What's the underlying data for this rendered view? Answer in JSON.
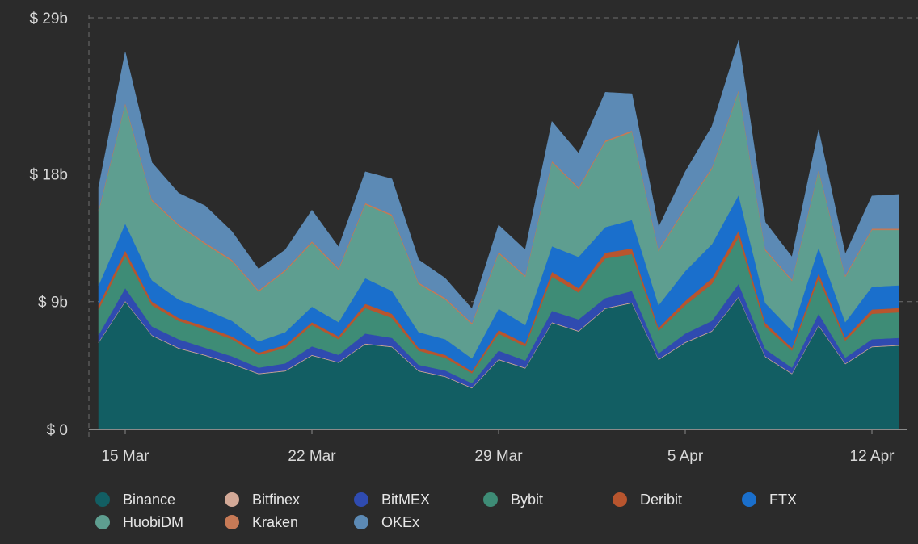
{
  "chart_data": {
    "type": "area",
    "stacked": true,
    "x_tick_labels": [
      "15 Mar",
      "22 Mar",
      "29 Mar",
      "5 Apr",
      "12 Apr"
    ],
    "y_tick_labels": [
      "$ 0",
      "$ 9b",
      "$ 18b",
      "$ 29b"
    ],
    "y_ticks": [
      0,
      9,
      18,
      29
    ],
    "ylim": [
      0,
      29
    ],
    "y_unit": "billion USD",
    "x": [
      "14 Mar",
      "15 Mar",
      "16 Mar",
      "17 Mar",
      "18 Mar",
      "19 Mar",
      "20 Mar",
      "21 Mar",
      "22 Mar",
      "23 Mar",
      "24 Mar",
      "25 Mar",
      "26 Mar",
      "27 Mar",
      "28 Mar",
      "29 Mar",
      "30 Mar",
      "31 Mar",
      "1 Apr",
      "2 Apr",
      "3 Apr",
      "4 Apr",
      "5 Apr",
      "6 Apr",
      "7 Apr",
      "8 Apr",
      "9 Apr",
      "10 Apr",
      "11 Apr",
      "12 Apr",
      "13 Apr"
    ],
    "grid": "horizontal dashed",
    "legend_position": "bottom",
    "series": [
      {
        "name": "Binance",
        "color": "#125e63",
        "values": [
          6.1,
          9.0,
          6.6,
          5.7,
          5.2,
          4.6,
          3.9,
          4.1,
          5.2,
          4.7,
          6.0,
          5.8,
          4.1,
          3.7,
          2.9,
          4.9,
          4.3,
          7.5,
          6.9,
          8.5,
          8.9,
          4.9,
          6.1,
          6.9,
          9.3,
          5.1,
          3.9,
          7.3,
          4.6,
          5.8,
          5.9
        ]
      },
      {
        "name": "Bitfinex",
        "color": "#d3a997",
        "values": [
          0.05,
          0.05,
          0.05,
          0.05,
          0.05,
          0.05,
          0.05,
          0.05,
          0.05,
          0.05,
          0.05,
          0.05,
          0.05,
          0.05,
          0.05,
          0.05,
          0.05,
          0.05,
          0.05,
          0.05,
          0.05,
          0.05,
          0.05,
          0.05,
          0.05,
          0.05,
          0.05,
          0.05,
          0.05,
          0.05,
          0.05
        ]
      },
      {
        "name": "BitMEX",
        "color": "#2f4bb0",
        "values": [
          0.5,
          0.9,
          0.6,
          0.6,
          0.5,
          0.5,
          0.4,
          0.5,
          0.6,
          0.5,
          0.7,
          0.6,
          0.4,
          0.4,
          0.3,
          0.6,
          0.5,
          0.8,
          0.8,
          0.7,
          0.8,
          0.4,
          0.6,
          0.7,
          0.9,
          0.5,
          0.4,
          0.8,
          0.4,
          0.5,
          0.5
        ]
      },
      {
        "name": "Bybit",
        "color": "#3e8c76",
        "values": [
          1.8,
          2.3,
          1.5,
          1.3,
          1.3,
          1.2,
          0.9,
          1.1,
          1.5,
          1.1,
          1.8,
          1.4,
          1.0,
          0.9,
          0.7,
          1.2,
          1.0,
          2.4,
          1.9,
          2.8,
          2.6,
          1.6,
          2.0,
          2.6,
          3.3,
          1.6,
          1.2,
          2.5,
          1.2,
          1.8,
          1.8
        ]
      },
      {
        "name": "Deribit",
        "color": "#b8552e",
        "values": [
          0.3,
          0.35,
          0.25,
          0.2,
          0.2,
          0.2,
          0.15,
          0.2,
          0.2,
          0.2,
          0.3,
          0.3,
          0.2,
          0.2,
          0.15,
          0.25,
          0.2,
          0.35,
          0.3,
          0.4,
          0.4,
          0.2,
          0.3,
          0.4,
          0.45,
          0.25,
          0.2,
          0.35,
          0.2,
          0.3,
          0.3
        ]
      },
      {
        "name": "FTX",
        "color": "#1a6fcc",
        "values": [
          1.4,
          1.9,
          1.5,
          1.3,
          1.2,
          1.1,
          0.8,
          0.9,
          1.1,
          1.0,
          1.8,
          1.6,
          1.1,
          1.1,
          0.9,
          1.5,
          1.3,
          1.8,
          2.2,
          1.8,
          2.0,
          1.6,
          2.1,
          2.4,
          2.5,
          1.4,
          1.2,
          1.8,
          1.1,
          1.6,
          1.6
        ]
      },
      {
        "name": "HuobiDM",
        "color": "#5e9e90",
        "values": [
          5.2,
          8.4,
          5.6,
          5.2,
          4.6,
          4.2,
          3.5,
          4.3,
          4.5,
          3.7,
          5.2,
          5.3,
          3.4,
          2.8,
          2.4,
          3.9,
          3.4,
          5.9,
          4.8,
          6.0,
          6.2,
          3.8,
          4.4,
          5.3,
          7.3,
          3.7,
          3.5,
          5.4,
          3.2,
          4.0,
          3.9
        ]
      },
      {
        "name": "Kraken",
        "color": "#c77a56",
        "values": [
          0.1,
          0.1,
          0.1,
          0.1,
          0.1,
          0.1,
          0.1,
          0.1,
          0.1,
          0.1,
          0.1,
          0.1,
          0.1,
          0.1,
          0.1,
          0.1,
          0.1,
          0.1,
          0.1,
          0.1,
          0.1,
          0.1,
          0.1,
          0.1,
          0.1,
          0.1,
          0.1,
          0.1,
          0.1,
          0.1,
          0.1
        ]
      },
      {
        "name": "OKEx",
        "color": "#5c8ab5",
        "values": [
          1.6,
          3.6,
          2.6,
          2.2,
          2.6,
          2.0,
          1.5,
          1.4,
          2.2,
          1.5,
          2.2,
          2.5,
          1.6,
          1.4,
          1.0,
          1.9,
          1.8,
          2.8,
          2.4,
          3.4,
          2.6,
          1.6,
          2.5,
          2.9,
          3.5,
          1.9,
          1.6,
          2.8,
          1.5,
          2.3,
          2.4
        ]
      }
    ]
  }
}
